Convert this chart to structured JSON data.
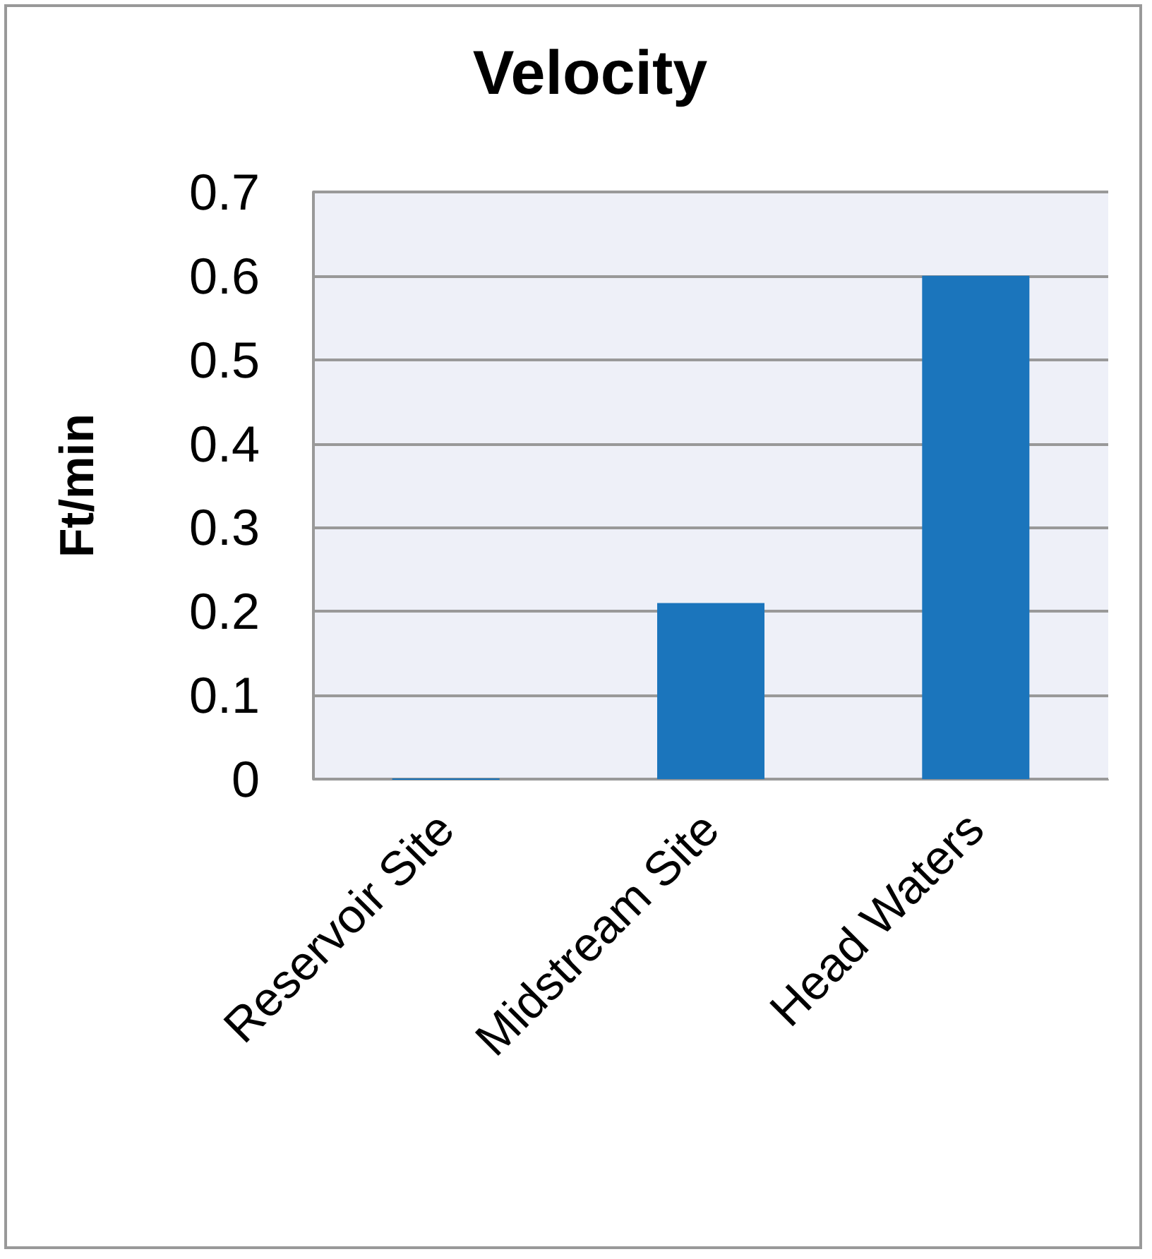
{
  "chart_data": {
    "type": "bar",
    "title": "Velocity",
    "ylabel": "Ft/min",
    "categories": [
      "Reservoir Site",
      "Midstream Site",
      "Head Waters"
    ],
    "values": [
      0,
      0.21,
      0.6
    ],
    "color": "#1b75bc",
    "ylim": [
      0,
      0.7
    ],
    "yticks": [
      0,
      0.1,
      0.2,
      0.3,
      0.4,
      0.5,
      0.6,
      0.7
    ],
    "grid": "y"
  }
}
